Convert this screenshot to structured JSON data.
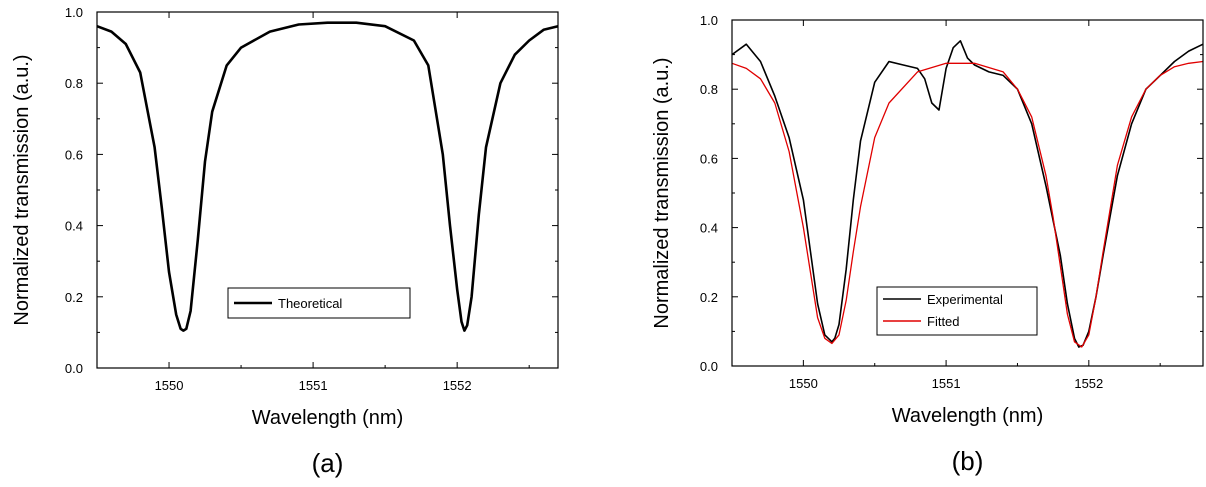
{
  "chart_data": [
    {
      "type": "line",
      "panel_label": "(a)",
      "xlabel": "Wavelength (nm)",
      "ylabel": "Normalized transmission (a.u.)",
      "xlim": [
        1549.5,
        1552.7
      ],
      "ylim": [
        0.0,
        1.0
      ],
      "xticks": [
        1550,
        1551,
        1552
      ],
      "xtick_labels": [
        "1550",
        "1551",
        "1552"
      ],
      "yticks": [
        0.0,
        0.2,
        0.4,
        0.6,
        0.8,
        1.0
      ],
      "ytick_labels": [
        "0.0",
        "0.2",
        "0.4",
        "0.6",
        "0.8",
        "1.0"
      ],
      "grid": false,
      "legend_position": "center-bottom",
      "series": [
        {
          "name": "Theoretical",
          "color": "#000000",
          "x": [
            1549.5,
            1549.6,
            1549.7,
            1549.8,
            1549.9,
            1549.95,
            1550.0,
            1550.05,
            1550.08,
            1550.1,
            1550.12,
            1550.15,
            1550.2,
            1550.25,
            1550.3,
            1550.4,
            1550.5,
            1550.7,
            1550.9,
            1551.1,
            1551.3,
            1551.5,
            1551.7,
            1551.8,
            1551.9,
            1551.95,
            1552.0,
            1552.03,
            1552.05,
            1552.07,
            1552.1,
            1552.15,
            1552.2,
            1552.3,
            1552.4,
            1552.5,
            1552.6,
            1552.7
          ],
          "values": [
            0.96,
            0.945,
            0.91,
            0.83,
            0.62,
            0.45,
            0.27,
            0.15,
            0.11,
            0.105,
            0.11,
            0.16,
            0.36,
            0.58,
            0.72,
            0.85,
            0.9,
            0.945,
            0.965,
            0.97,
            0.97,
            0.96,
            0.92,
            0.85,
            0.6,
            0.4,
            0.22,
            0.13,
            0.105,
            0.12,
            0.2,
            0.43,
            0.62,
            0.8,
            0.88,
            0.92,
            0.95,
            0.96
          ]
        }
      ]
    },
    {
      "type": "line",
      "panel_label": "(b)",
      "xlabel": "Wavelength (nm)",
      "ylabel": "Normalized transmission (a.u.)",
      "xlim": [
        1549.5,
        1552.8
      ],
      "ylim": [
        0.0,
        1.0
      ],
      "xticks": [
        1550,
        1551,
        1552
      ],
      "xtick_labels": [
        "1550",
        "1551",
        "1552"
      ],
      "yticks": [
        0.0,
        0.2,
        0.4,
        0.6,
        0.8,
        1.0
      ],
      "ytick_labels": [
        "0.0",
        "0.2",
        "0.4",
        "0.6",
        "0.8",
        "1.0"
      ],
      "grid": false,
      "legend_position": "center-bottom",
      "series": [
        {
          "name": "Experimental",
          "color": "#000000",
          "x": [
            1549.5,
            1549.6,
            1549.7,
            1549.8,
            1549.9,
            1550.0,
            1550.05,
            1550.1,
            1550.15,
            1550.2,
            1550.22,
            1550.25,
            1550.3,
            1550.35,
            1550.4,
            1550.5,
            1550.6,
            1550.7,
            1550.8,
            1550.85,
            1550.9,
            1550.95,
            1551.0,
            1551.05,
            1551.1,
            1551.15,
            1551.2,
            1551.3,
            1551.4,
            1551.5,
            1551.6,
            1551.7,
            1551.8,
            1551.85,
            1551.9,
            1551.93,
            1551.96,
            1552.0,
            1552.05,
            1552.1,
            1552.2,
            1552.3,
            1552.4,
            1552.5,
            1552.6,
            1552.7,
            1552.8
          ],
          "values": [
            0.9,
            0.93,
            0.88,
            0.78,
            0.66,
            0.48,
            0.33,
            0.18,
            0.09,
            0.07,
            0.08,
            0.12,
            0.28,
            0.48,
            0.65,
            0.82,
            0.88,
            0.87,
            0.86,
            0.83,
            0.76,
            0.74,
            0.86,
            0.92,
            0.94,
            0.89,
            0.87,
            0.85,
            0.84,
            0.8,
            0.7,
            0.52,
            0.32,
            0.18,
            0.08,
            0.055,
            0.06,
            0.1,
            0.2,
            0.32,
            0.55,
            0.7,
            0.8,
            0.84,
            0.88,
            0.91,
            0.93
          ]
        },
        {
          "name": "Fitted",
          "color": "#e00000",
          "x": [
            1549.5,
            1549.6,
            1549.7,
            1549.8,
            1549.9,
            1550.0,
            1550.05,
            1550.1,
            1550.15,
            1550.2,
            1550.25,
            1550.3,
            1550.35,
            1550.4,
            1550.5,
            1550.6,
            1550.8,
            1551.0,
            1551.2,
            1551.4,
            1551.5,
            1551.6,
            1551.7,
            1551.75,
            1551.8,
            1551.85,
            1551.9,
            1551.95,
            1552.0,
            1552.05,
            1552.1,
            1552.2,
            1552.3,
            1552.4,
            1552.5,
            1552.6,
            1552.7,
            1552.8
          ],
          "values": [
            0.875,
            0.86,
            0.83,
            0.76,
            0.62,
            0.4,
            0.27,
            0.14,
            0.08,
            0.065,
            0.09,
            0.19,
            0.33,
            0.46,
            0.66,
            0.76,
            0.85,
            0.875,
            0.875,
            0.85,
            0.8,
            0.72,
            0.55,
            0.43,
            0.29,
            0.15,
            0.07,
            0.055,
            0.09,
            0.2,
            0.33,
            0.58,
            0.72,
            0.8,
            0.84,
            0.865,
            0.875,
            0.88
          ]
        }
      ]
    }
  ]
}
